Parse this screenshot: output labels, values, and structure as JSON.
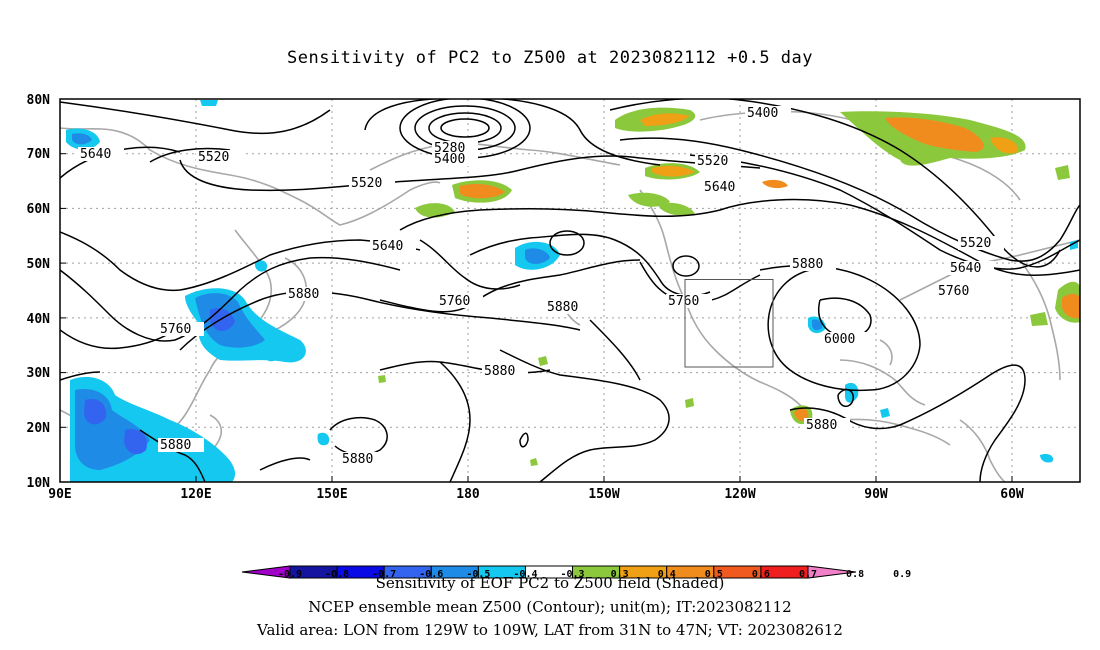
{
  "title": "Sensitivity of PC2 to Z500 at 2023082112 +0.5 day",
  "lat_labels": [
    "80N",
    "70N",
    "60N",
    "50N",
    "40N",
    "30N",
    "20N",
    "10N"
  ],
  "lon_labels": [
    "90E",
    "120E",
    "150E",
    "180",
    "150W",
    "120W",
    "90W",
    "60W"
  ],
  "contour_labels": [
    "5640",
    "5520",
    "5280",
    "5400",
    "5520",
    "5400",
    "5520",
    "5640",
    "5640",
    "5520",
    "5640",
    "5760",
    "5880",
    "5760",
    "5880",
    "5760",
    "5880",
    "5760",
    "5880",
    "6000",
    "5880",
    "5880",
    "5880"
  ],
  "colorbar": {
    "ticks": [
      "-0.9",
      "-0.8",
      "-0.7",
      "-0.6",
      "-0.5",
      "-0.4",
      "-0.3",
      "0.3",
      "0.4",
      "0.5",
      "0.6",
      "0.7",
      "0.8",
      "0.9"
    ],
    "colors": [
      "#a000c8",
      "#1414a0",
      "#0a0ae6",
      "#3264f0",
      "#1e8ce6",
      "#14c8f0",
      "#ffffff",
      "#8cc83c",
      "#f0a014",
      "#f08c1e",
      "#f05a1e",
      "#f01e1e",
      "#f080c8"
    ]
  },
  "valid_box": {
    "lon": [
      -129,
      -109
    ],
    "lat": [
      31,
      47
    ]
  },
  "captions": [
    "Sensitivity of EOF PC2 to Z500 field (Shaded)",
    "NCEP ensemble mean Z500 (Contour); unit(m); IT:2023082112",
    "Valid area: LON from 129W to 109W, LAT from 31N to 47N; VT: 2023082612"
  ]
}
